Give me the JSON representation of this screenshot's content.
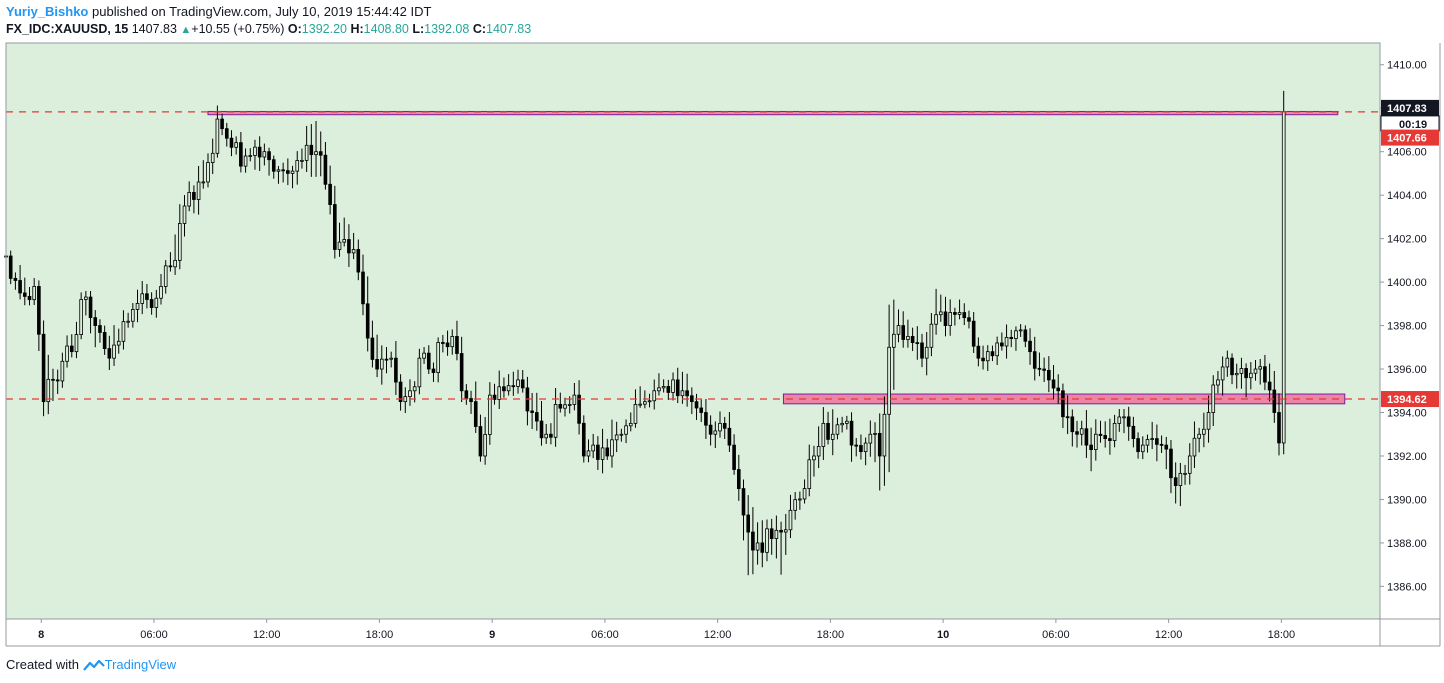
{
  "header": {
    "author": "Yuriy_Bishko",
    "published": "published on TradingView.com, July 10, 2019 15:44:42 IDT",
    "symbol": "FX_IDC:XAUUSD, 15",
    "last": "1407.83",
    "change_arrow": "up-triangle-icon",
    "change": "+10.55 (+0.75%)",
    "o_label": "O:",
    "o_val": "1392.20",
    "h_label": "H:",
    "h_val": "1408.80",
    "l_label": "L:",
    "l_val": "1392.08",
    "c_label": "C:",
    "c_val": "1407.83"
  },
  "footer": {
    "created": "Created with",
    "brand": "TradingView",
    "logo_icon": "tradingview-logo-icon"
  },
  "colors": {
    "plot_bg": "#dcefdc",
    "candle": "#000000",
    "dashed_line": "#e53935",
    "zone_fill": "#f06292",
    "zone_border": "#7b1fa2",
    "last_price_bg": "#131722",
    "red_label_bg": "#e53935"
  },
  "chart_data": {
    "type": "candlestick",
    "symbol": "FX_IDC:XAUUSD",
    "interval": "15",
    "ylim": [
      1384.5,
      1411.0
    ],
    "y_ticks": [
      1386,
      1388,
      1390,
      1392,
      1394,
      1396,
      1398,
      1400,
      1402,
      1404,
      1406,
      1408,
      1410
    ],
    "y_tick_labels": [
      "1386.00",
      "1388.00",
      "1390.00",
      "1392.00",
      "1394.00",
      "1396.00",
      "1398.00",
      "1400.00",
      "1402.00",
      "1404.00",
      "1406.00",
      "1408.00",
      "1410.00"
    ],
    "x_ticks": [
      "8",
      "06:00",
      "12:00",
      "18:00",
      "9",
      "06:00",
      "12:00",
      "18:00",
      "10",
      "06:00",
      "12:00",
      "18:00"
    ],
    "x_tick_bars": [
      7.5,
      31.5,
      55.5,
      79.5,
      103.5,
      127.5,
      151.5,
      175.5,
      199.5,
      223.5,
      247.5,
      271.5
    ],
    "x_range_bars": [
      0,
      292.5
    ],
    "bars_count": 262,
    "anchors": [
      [
        0,
        1401.2,
        1401.5,
        1400.8
      ],
      [
        3,
        1399.5,
        1400.5,
        1399.0
      ],
      [
        6,
        1399.8,
        1400.3,
        1399.2
      ],
      [
        7,
        1397.6,
        1398.0,
        1396.4
      ],
      [
        8,
        1394.5,
        1396.0,
        1392.5
      ],
      [
        10,
        1395.5,
        1396.3,
        1394.5
      ],
      [
        14,
        1396.8,
        1397.6,
        1396.3
      ],
      [
        16,
        1399.2,
        1399.8,
        1398.6
      ],
      [
        19,
        1398.0,
        1398.6,
        1396.8
      ],
      [
        22,
        1396.5,
        1397.5,
        1395.8
      ],
      [
        26,
        1398.2,
        1399.0,
        1397.6
      ],
      [
        30,
        1399.2,
        1399.8,
        1398.6
      ],
      [
        33,
        1399.8,
        1400.5,
        1399.2
      ],
      [
        36,
        1401.0,
        1402.2,
        1400.4
      ],
      [
        38,
        1403.5,
        1404.8,
        1402.8
      ],
      [
        40,
        1403.8,
        1404.6,
        1403.0
      ],
      [
        43,
        1405.5,
        1406.8,
        1404.8
      ],
      [
        45,
        1407.5,
        1408.2,
        1407.0
      ],
      [
        48,
        1406.2,
        1407.0,
        1405.4
      ],
      [
        51,
        1405.8,
        1406.4,
        1405.0
      ],
      [
        55,
        1406.0,
        1406.5,
        1405.2
      ],
      [
        60,
        1405.0,
        1405.6,
        1404.2
      ],
      [
        63,
        1405.6,
        1406.3,
        1405.0
      ],
      [
        66,
        1406.0,
        1407.5,
        1404.5
      ],
      [
        68,
        1404.5,
        1405.5,
        1403.8
      ],
      [
        70,
        1401.5,
        1403.0,
        1401.0
      ],
      [
        74,
        1401.5,
        1402.5,
        1400.8
      ],
      [
        76,
        1399.0,
        1400.2,
        1398.0
      ],
      [
        79,
        1396.0,
        1397.5,
        1395.2
      ],
      [
        82,
        1396.5,
        1397.2,
        1395.8
      ],
      [
        84,
        1394.5,
        1395.5,
        1393.5
      ],
      [
        86,
        1395.0,
        1395.8,
        1394.2
      ],
      [
        88,
        1396.5,
        1397.2,
        1396.0
      ],
      [
        90,
        1396.0,
        1396.8,
        1395.6
      ],
      [
        93,
        1397.2,
        1397.9,
        1396.4
      ],
      [
        95,
        1397.5,
        1398.2,
        1397.0
      ],
      [
        97,
        1395.0,
        1395.8,
        1394.4
      ],
      [
        99,
        1394.5,
        1395.4,
        1393.8
      ],
      [
        101,
        1392.0,
        1393.0,
        1391.5
      ],
      [
        103,
        1394.8,
        1395.5,
        1394.2
      ],
      [
        106,
        1395.0,
        1395.8,
        1394.4
      ],
      [
        109,
        1395.5,
        1396.2,
        1395.0
      ],
      [
        112,
        1394.0,
        1395.0,
        1393.2
      ],
      [
        115,
        1393.0,
        1394.0,
        1392.4
      ],
      [
        118,
        1394.2,
        1395.0,
        1393.6
      ],
      [
        121,
        1394.8,
        1395.6,
        1394.2
      ],
      [
        123,
        1392.0,
        1393.0,
        1391.0
      ],
      [
        125,
        1392.5,
        1393.2,
        1391.6
      ],
      [
        128,
        1392.0,
        1393.0,
        1391.4
      ],
      [
        131,
        1393.0,
        1393.8,
        1392.4
      ],
      [
        133,
        1393.5,
        1394.4,
        1393.0
      ],
      [
        136,
        1394.5,
        1395.6,
        1394.0
      ],
      [
        138,
        1395.0,
        1395.8,
        1394.4
      ],
      [
        140,
        1395.2,
        1395.8,
        1394.6
      ],
      [
        142,
        1395.5,
        1396.4,
        1394.8
      ],
      [
        144,
        1395.0,
        1396.0,
        1394.4
      ],
      [
        146,
        1394.5,
        1395.2,
        1393.8
      ],
      [
        148,
        1394.0,
        1394.8,
        1393.4
      ],
      [
        150,
        1393.0,
        1394.2,
        1392.2
      ],
      [
        152,
        1393.5,
        1394.2,
        1392.8
      ],
      [
        154,
        1392.5,
        1393.4,
        1391.6
      ],
      [
        156,
        1390.5,
        1391.6,
        1389.8
      ],
      [
        158,
        1388.5,
        1390.0,
        1385.6
      ],
      [
        160,
        1388.0,
        1389.2,
        1387.2
      ],
      [
        163,
        1388.2,
        1389.0,
        1387.4
      ],
      [
        165,
        1388.5,
        1389.2,
        1386.2
      ],
      [
        167,
        1389.5,
        1390.5,
        1388.8
      ],
      [
        170,
        1390.5,
        1391.4,
        1389.8
      ],
      [
        172,
        1392.0,
        1393.0,
        1391.2
      ],
      [
        174,
        1393.5,
        1394.8,
        1392.8
      ],
      [
        176,
        1393.0,
        1394.4,
        1392.2
      ],
      [
        178,
        1393.5,
        1394.2,
        1392.8
      ],
      [
        180,
        1392.5,
        1393.4,
        1391.4
      ],
      [
        182,
        1392.2,
        1393.0,
        1391.2
      ],
      [
        184,
        1393.0,
        1393.8,
        1392.2
      ],
      [
        186,
        1392.0,
        1393.2,
        1390.0
      ],
      [
        188,
        1397.0,
        1400.0,
        1393.8
      ],
      [
        190,
        1398.0,
        1398.8,
        1397.2
      ],
      [
        192,
        1397.5,
        1398.4,
        1396.8
      ],
      [
        194,
        1397.2,
        1398.0,
        1396.4
      ],
      [
        196,
        1397.0,
        1397.8,
        1396.2
      ],
      [
        198,
        1398.5,
        1400.0,
        1397.8
      ],
      [
        200,
        1398.0,
        1398.8,
        1397.4
      ],
      [
        203,
        1398.6,
        1399.2,
        1398.0
      ],
      [
        205,
        1398.2,
        1399.0,
        1397.6
      ],
      [
        207,
        1396.5,
        1397.5,
        1395.6
      ],
      [
        209,
        1396.8,
        1397.6,
        1396.2
      ],
      [
        211,
        1397.2,
        1398.0,
        1396.6
      ],
      [
        214,
        1397.4,
        1398.0,
        1396.8
      ],
      [
        216,
        1397.8,
        1398.2,
        1397.2
      ],
      [
        218,
        1396.8,
        1397.6,
        1396.0
      ],
      [
        220,
        1396.0,
        1396.8,
        1395.4
      ],
      [
        222,
        1395.5,
        1396.2,
        1394.8
      ],
      [
        224,
        1395.0,
        1395.8,
        1394.4
      ],
      [
        226,
        1393.8,
        1394.8,
        1393.0
      ],
      [
        228,
        1393.0,
        1394.0,
        1392.2
      ],
      [
        230,
        1392.5,
        1393.5,
        1391.0
      ],
      [
        232,
        1393.0,
        1393.8,
        1392.2
      ],
      [
        234,
        1392.8,
        1393.6,
        1391.8
      ],
      [
        236,
        1393.5,
        1394.8,
        1392.8
      ],
      [
        238,
        1393.8,
        1394.4,
        1393.0
      ],
      [
        240,
        1392.8,
        1393.6,
        1392.0
      ],
      [
        242,
        1392.5,
        1393.2,
        1391.8
      ],
      [
        244,
        1392.8,
        1393.6,
        1392.0
      ],
      [
        246,
        1392.5,
        1393.4,
        1391.6
      ],
      [
        248,
        1391.0,
        1392.2,
        1389.8
      ],
      [
        250,
        1391.2,
        1392.0,
        1390.2
      ],
      [
        252,
        1392.0,
        1393.0,
        1391.4
      ],
      [
        254,
        1393.0,
        1393.8,
        1392.2
      ],
      [
        256,
        1394.0,
        1394.8,
        1393.2
      ],
      [
        258,
        1395.5,
        1396.8,
        1394.8
      ],
      [
        260,
        1396.5,
        1397.0,
        1395.6
      ],
      [
        262,
        1395.8,
        1396.4,
        1395.0
      ],
      [
        264,
        1395.6,
        1396.2,
        1394.6
      ],
      [
        266,
        1396.0,
        1396.6,
        1395.2
      ],
      [
        268,
        1395.4,
        1396.2,
        1394.4
      ],
      [
        270,
        1394.0,
        1395.0,
        1393.2
      ],
      [
        271,
        1392.6,
        1393.8,
        1391.4
      ],
      [
        272,
        1407.83,
        1408.8,
        1392.08
      ]
    ],
    "last_price": 1407.83,
    "last_price_label": "1407.83",
    "countdown_label": "00:19",
    "red_level": 1407.66,
    "red_level_label": "1407.66",
    "support_level": 1394.62,
    "support_level_label": "1394.62",
    "resistance_level": 1407.83,
    "zones": [
      {
        "name": "resistance-zone",
        "x_bars": [
          43,
          283.5
        ],
        "y": [
          1407.7,
          1407.85
        ]
      },
      {
        "name": "support-zone",
        "x_bars": [
          165.5,
          285
        ],
        "y": [
          1394.4,
          1394.85
        ]
      }
    ]
  }
}
